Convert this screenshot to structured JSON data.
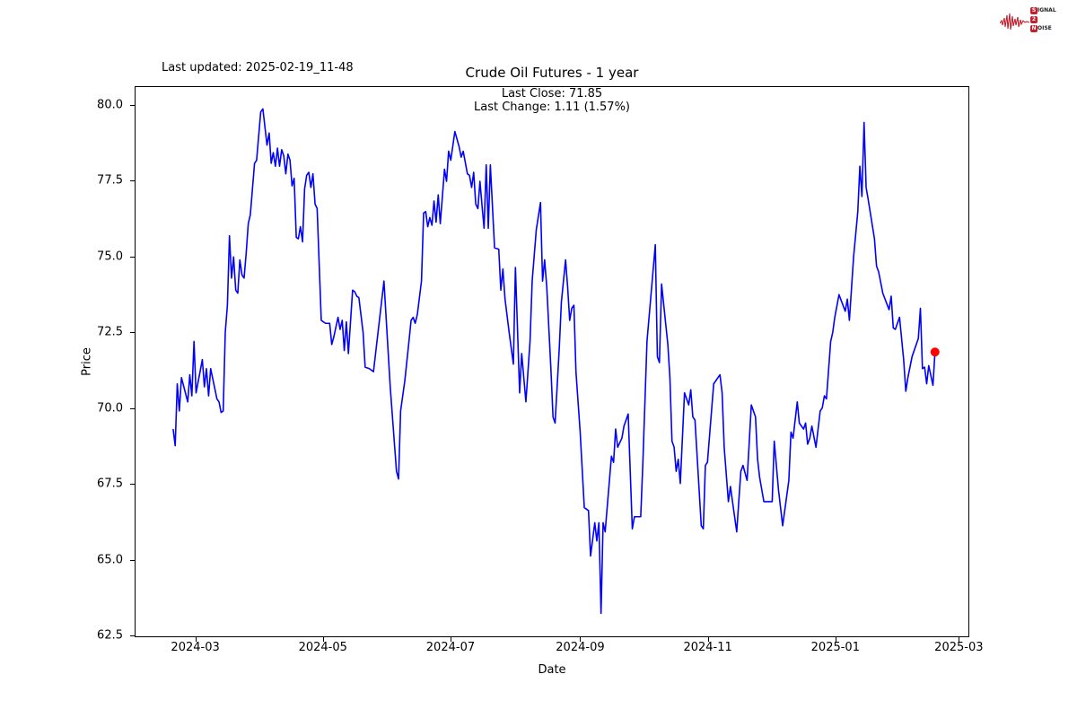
{
  "header": {
    "last_updated": "Last updated: 2025-02-19_11-48"
  },
  "logo": {
    "line1_badge": "S",
    "line1_rest": "IGNAL",
    "line2_badge": "2",
    "line2_rest": "",
    "line3_badge": "N",
    "line3_rest": "OISE",
    "badge_color": "#c1202e",
    "wave_color": "#c1202e"
  },
  "chart_data": {
    "type": "line",
    "title": "Crude Oil Futures - 1 year",
    "annotations": [
      "Last Close: 71.85",
      "Last Change: 1.11 (1.57%)"
    ],
    "xlabel": "Date",
    "ylabel": "Price",
    "line_color": "#0000ff",
    "marker_color": "#ff0000",
    "background": "#ffffff",
    "grid": false,
    "legend": "none",
    "ylim": [
      62.5,
      80.0
    ],
    "x_axis_start": "2024-02-01",
    "x_axis_span_days": 399,
    "y_ticks": [
      {
        "label": "80.0",
        "value": 80.0
      },
      {
        "label": "77.5",
        "value": 77.5
      },
      {
        "label": "75.0",
        "value": 75.0
      },
      {
        "label": "72.5",
        "value": 72.5
      },
      {
        "label": "70.0",
        "value": 70.0
      },
      {
        "label": "67.5",
        "value": 67.5
      },
      {
        "label": "65.0",
        "value": 65.0
      },
      {
        "label": "62.5",
        "value": 62.5
      }
    ],
    "x_ticks": [
      {
        "label": "2024-03",
        "date": "2024-03-01"
      },
      {
        "label": "2024-05",
        "date": "2024-05-01"
      },
      {
        "label": "2024-07",
        "date": "2024-07-01"
      },
      {
        "label": "2024-09",
        "date": "2024-09-01"
      },
      {
        "label": "2024-11",
        "date": "2024-11-01"
      },
      {
        "label": "2025-01",
        "date": "2025-01-01"
      },
      {
        "label": "2025-03",
        "date": "2025-03-01"
      }
    ],
    "last_close": 71.85,
    "last_change": "1.11 (1.57%)",
    "series": [
      [
        "2024-02-19",
        69.3
      ],
      [
        "2024-02-20",
        68.75
      ],
      [
        "2024-02-21",
        70.8
      ],
      [
        "2024-02-22",
        69.9
      ],
      [
        "2024-02-23",
        71.0
      ],
      [
        "2024-02-26",
        70.2
      ],
      [
        "2024-02-27",
        71.1
      ],
      [
        "2024-02-28",
        70.4
      ],
      [
        "2024-02-29",
        72.2
      ],
      [
        "2024-03-01",
        70.5
      ],
      [
        "2024-03-04",
        71.6
      ],
      [
        "2024-03-05",
        70.7
      ],
      [
        "2024-03-06",
        71.3
      ],
      [
        "2024-03-07",
        70.4
      ],
      [
        "2024-03-08",
        71.3
      ],
      [
        "2024-03-11",
        70.3
      ],
      [
        "2024-03-12",
        70.2
      ],
      [
        "2024-03-13",
        69.85
      ],
      [
        "2024-03-14",
        69.9
      ],
      [
        "2024-03-15",
        72.5
      ],
      [
        "2024-03-16",
        73.4
      ],
      [
        "2024-03-17",
        75.7
      ],
      [
        "2024-03-18",
        74.3
      ],
      [
        "2024-03-19",
        75.0
      ],
      [
        "2024-03-20",
        73.9
      ],
      [
        "2024-03-21",
        73.8
      ],
      [
        "2024-03-22",
        74.9
      ],
      [
        "2024-03-23",
        74.4
      ],
      [
        "2024-03-24",
        74.3
      ],
      [
        "2024-03-25",
        75.1
      ],
      [
        "2024-03-26",
        76.1
      ],
      [
        "2024-03-27",
        76.4
      ],
      [
        "2024-03-29",
        78.1
      ],
      [
        "2024-03-30",
        78.2
      ],
      [
        "2024-04-01",
        79.8
      ],
      [
        "2024-04-02",
        79.9
      ],
      [
        "2024-04-03",
        79.3
      ],
      [
        "2024-04-04",
        78.7
      ],
      [
        "2024-04-05",
        79.1
      ],
      [
        "2024-04-06",
        78.1
      ],
      [
        "2024-04-07",
        78.45
      ],
      [
        "2024-04-08",
        78.0
      ],
      [
        "2024-04-09",
        78.6
      ],
      [
        "2024-04-10",
        78.0
      ],
      [
        "2024-04-11",
        78.55
      ],
      [
        "2024-04-12",
        78.35
      ],
      [
        "2024-04-13",
        77.75
      ],
      [
        "2024-04-14",
        78.4
      ],
      [
        "2024-04-15",
        78.2
      ],
      [
        "2024-04-16",
        77.35
      ],
      [
        "2024-04-17",
        77.6
      ],
      [
        "2024-04-18",
        75.65
      ],
      [
        "2024-04-19",
        75.6
      ],
      [
        "2024-04-20",
        76.0
      ],
      [
        "2024-04-21",
        75.5
      ],
      [
        "2024-04-22",
        77.25
      ],
      [
        "2024-04-23",
        77.7
      ],
      [
        "2024-04-24",
        77.8
      ],
      [
        "2024-04-25",
        77.3
      ],
      [
        "2024-04-26",
        77.75
      ],
      [
        "2024-04-27",
        76.75
      ],
      [
        "2024-04-28",
        76.6
      ],
      [
        "2024-04-30",
        72.9
      ],
      [
        "2024-05-02",
        72.8
      ],
      [
        "2024-05-04",
        72.8
      ],
      [
        "2024-05-05",
        72.1
      ],
      [
        "2024-05-06",
        72.35
      ],
      [
        "2024-05-08",
        73.0
      ],
      [
        "2024-05-09",
        72.6
      ],
      [
        "2024-05-10",
        72.9
      ],
      [
        "2024-05-11",
        71.9
      ],
      [
        "2024-05-12",
        72.85
      ],
      [
        "2024-05-13",
        71.8
      ],
      [
        "2024-05-15",
        73.9
      ],
      [
        "2024-05-16",
        73.85
      ],
      [
        "2024-05-17",
        73.7
      ],
      [
        "2024-05-18",
        73.65
      ],
      [
        "2024-05-20",
        72.5
      ],
      [
        "2024-05-21",
        71.35
      ],
      [
        "2024-05-23",
        71.3
      ],
      [
        "2024-05-25",
        71.2
      ],
      [
        "2024-05-30",
        74.2
      ],
      [
        "2024-06-02",
        70.7
      ],
      [
        "2024-06-05",
        67.9
      ],
      [
        "2024-06-06",
        67.65
      ],
      [
        "2024-06-07",
        69.9
      ],
      [
        "2024-06-09",
        70.9
      ],
      [
        "2024-06-11",
        72.2
      ],
      [
        "2024-06-12",
        72.9
      ],
      [
        "2024-06-13",
        73.0
      ],
      [
        "2024-06-14",
        72.8
      ],
      [
        "2024-06-15",
        73.1
      ],
      [
        "2024-06-17",
        74.2
      ],
      [
        "2024-06-18",
        76.45
      ],
      [
        "2024-06-19",
        76.5
      ],
      [
        "2024-06-20",
        76.0
      ],
      [
        "2024-06-21",
        76.3
      ],
      [
        "2024-06-22",
        76.05
      ],
      [
        "2024-06-23",
        76.85
      ],
      [
        "2024-06-24",
        76.15
      ],
      [
        "2024-06-25",
        77.05
      ],
      [
        "2024-06-26",
        76.1
      ],
      [
        "2024-06-28",
        77.9
      ],
      [
        "2024-06-29",
        77.5
      ],
      [
        "2024-06-30",
        78.5
      ],
      [
        "2024-07-01",
        78.2
      ],
      [
        "2024-07-03",
        79.15
      ],
      [
        "2024-07-05",
        78.65
      ],
      [
        "2024-07-06",
        78.3
      ],
      [
        "2024-07-07",
        78.5
      ],
      [
        "2024-07-09",
        77.75
      ],
      [
        "2024-07-10",
        77.7
      ],
      [
        "2024-07-11",
        77.3
      ],
      [
        "2024-07-12",
        77.8
      ],
      [
        "2024-07-13",
        76.75
      ],
      [
        "2024-07-14",
        76.6
      ],
      [
        "2024-07-15",
        77.5
      ],
      [
        "2024-07-16",
        76.7
      ],
      [
        "2024-07-17",
        75.95
      ],
      [
        "2024-07-18",
        78.05
      ],
      [
        "2024-07-19",
        75.95
      ],
      [
        "2024-07-20",
        78.05
      ],
      [
        "2024-07-22",
        75.3
      ],
      [
        "2024-07-24",
        75.25
      ],
      [
        "2024-07-25",
        73.9
      ],
      [
        "2024-07-26",
        74.6
      ],
      [
        "2024-07-27",
        73.6
      ],
      [
        "2024-07-29",
        72.5
      ],
      [
        "2024-07-31",
        71.45
      ],
      [
        "2024-08-01",
        74.65
      ],
      [
        "2024-08-03",
        70.5
      ],
      [
        "2024-08-04",
        71.8
      ],
      [
        "2024-08-06",
        70.2
      ],
      [
        "2024-08-08",
        72.2
      ],
      [
        "2024-08-09",
        74.2
      ],
      [
        "2024-08-11",
        75.9
      ],
      [
        "2024-08-13",
        76.8
      ],
      [
        "2024-08-14",
        74.2
      ],
      [
        "2024-08-15",
        74.9
      ],
      [
        "2024-08-16",
        74.0
      ],
      [
        "2024-08-18",
        71.3
      ],
      [
        "2024-08-19",
        69.7
      ],
      [
        "2024-08-20",
        69.5
      ],
      [
        "2024-08-22",
        72.0
      ],
      [
        "2024-08-23",
        73.5
      ],
      [
        "2024-08-25",
        74.9
      ],
      [
        "2024-08-26",
        74.0
      ],
      [
        "2024-08-27",
        72.9
      ],
      [
        "2024-08-28",
        73.3
      ],
      [
        "2024-08-29",
        73.4
      ],
      [
        "2024-08-30",
        71.2
      ],
      [
        "2024-09-01",
        69.2
      ],
      [
        "2024-09-03",
        66.7
      ],
      [
        "2024-09-05",
        66.6
      ],
      [
        "2024-09-06",
        65.1
      ],
      [
        "2024-09-08",
        66.2
      ],
      [
        "2024-09-09",
        65.6
      ],
      [
        "2024-09-10",
        66.2
      ],
      [
        "2024-09-11",
        63.2
      ],
      [
        "2024-09-12",
        66.2
      ],
      [
        "2024-09-13",
        65.9
      ],
      [
        "2024-09-16",
        68.4
      ],
      [
        "2024-09-17",
        68.2
      ],
      [
        "2024-09-18",
        69.3
      ],
      [
        "2024-09-19",
        68.7
      ],
      [
        "2024-09-21",
        69.0
      ],
      [
        "2024-09-22",
        69.4
      ],
      [
        "2024-09-24",
        69.8
      ],
      [
        "2024-09-26",
        66.0
      ],
      [
        "2024-09-27",
        66.4
      ],
      [
        "2024-09-30",
        66.4
      ],
      [
        "2024-10-01",
        68.1
      ],
      [
        "2024-10-03",
        72.2
      ],
      [
        "2024-10-07",
        75.4
      ],
      [
        "2024-10-08",
        71.7
      ],
      [
        "2024-10-09",
        71.5
      ],
      [
        "2024-10-10",
        74.1
      ],
      [
        "2024-10-13",
        72.1
      ],
      [
        "2024-10-14",
        71.0
      ],
      [
        "2024-10-15",
        68.9
      ],
      [
        "2024-10-16",
        68.7
      ],
      [
        "2024-10-17",
        67.9
      ],
      [
        "2024-10-18",
        68.3
      ],
      [
        "2024-10-19",
        67.5
      ],
      [
        "2024-10-21",
        70.5
      ],
      [
        "2024-10-23",
        70.1
      ],
      [
        "2024-10-24",
        70.6
      ],
      [
        "2024-10-25",
        69.7
      ],
      [
        "2024-10-26",
        69.6
      ],
      [
        "2024-10-29",
        66.1
      ],
      [
        "2024-10-30",
        66.0
      ],
      [
        "2024-10-31",
        68.1
      ],
      [
        "2024-11-01",
        68.2
      ],
      [
        "2024-11-04",
        70.8
      ],
      [
        "2024-11-07",
        71.1
      ],
      [
        "2024-11-08",
        70.5
      ],
      [
        "2024-11-09",
        68.7
      ],
      [
        "2024-11-11",
        66.9
      ],
      [
        "2024-11-12",
        67.4
      ],
      [
        "2024-11-13",
        66.9
      ],
      [
        "2024-11-15",
        65.9
      ],
      [
        "2024-11-17",
        67.9
      ],
      [
        "2024-11-18",
        68.1
      ],
      [
        "2024-11-20",
        67.6
      ],
      [
        "2024-11-22",
        70.1
      ],
      [
        "2024-11-24",
        69.7
      ],
      [
        "2024-11-25",
        68.3
      ],
      [
        "2024-11-26",
        67.7
      ],
      [
        "2024-11-28",
        66.9
      ],
      [
        "2024-12-02",
        66.9
      ],
      [
        "2024-12-03",
        68.9
      ],
      [
        "2024-12-05",
        67.3
      ],
      [
        "2024-12-07",
        66.1
      ],
      [
        "2024-12-10",
        67.6
      ],
      [
        "2024-12-11",
        69.2
      ],
      [
        "2024-12-12",
        69.0
      ],
      [
        "2024-12-14",
        70.2
      ],
      [
        "2024-12-15",
        69.5
      ],
      [
        "2024-12-17",
        69.3
      ],
      [
        "2024-12-18",
        69.5
      ],
      [
        "2024-12-19",
        68.8
      ],
      [
        "2024-12-20",
        69.0
      ],
      [
        "2024-12-21",
        69.4
      ],
      [
        "2024-12-23",
        68.7
      ],
      [
        "2024-12-25",
        69.9
      ],
      [
        "2024-12-26",
        70.0
      ],
      [
        "2024-12-27",
        70.4
      ],
      [
        "2024-12-28",
        70.3
      ],
      [
        "2024-12-30",
        72.2
      ],
      [
        "2024-12-31",
        72.5
      ],
      [
        "2025-01-01",
        73.0
      ],
      [
        "2025-01-03",
        73.75
      ],
      [
        "2025-01-06",
        73.2
      ],
      [
        "2025-01-07",
        73.6
      ],
      [
        "2025-01-08",
        72.9
      ],
      [
        "2025-01-10",
        75.0
      ],
      [
        "2025-01-12",
        76.5
      ],
      [
        "2025-01-13",
        78.0
      ],
      [
        "2025-01-14",
        77.0
      ],
      [
        "2025-01-15",
        79.45
      ],
      [
        "2025-01-16",
        77.3
      ],
      [
        "2025-01-17",
        76.9
      ],
      [
        "2025-01-20",
        75.6
      ],
      [
        "2025-01-21",
        74.7
      ],
      [
        "2025-01-22",
        74.5
      ],
      [
        "2025-01-24",
        73.8
      ],
      [
        "2025-01-27",
        73.25
      ],
      [
        "2025-01-28",
        73.7
      ],
      [
        "2025-01-29",
        72.65
      ],
      [
        "2025-01-30",
        72.6
      ],
      [
        "2025-02-01",
        73.0
      ],
      [
        "2025-02-03",
        71.6
      ],
      [
        "2025-02-04",
        70.55
      ],
      [
        "2025-02-05",
        71.0
      ],
      [
        "2025-02-07",
        71.7
      ],
      [
        "2025-02-10",
        72.3
      ],
      [
        "2025-02-11",
        73.3
      ],
      [
        "2025-02-12",
        71.3
      ],
      [
        "2025-02-13",
        71.35
      ],
      [
        "2025-02-14",
        70.8
      ],
      [
        "2025-02-15",
        71.4
      ],
      [
        "2025-02-17",
        70.75
      ],
      [
        "2025-02-18",
        71.85
      ]
    ]
  }
}
